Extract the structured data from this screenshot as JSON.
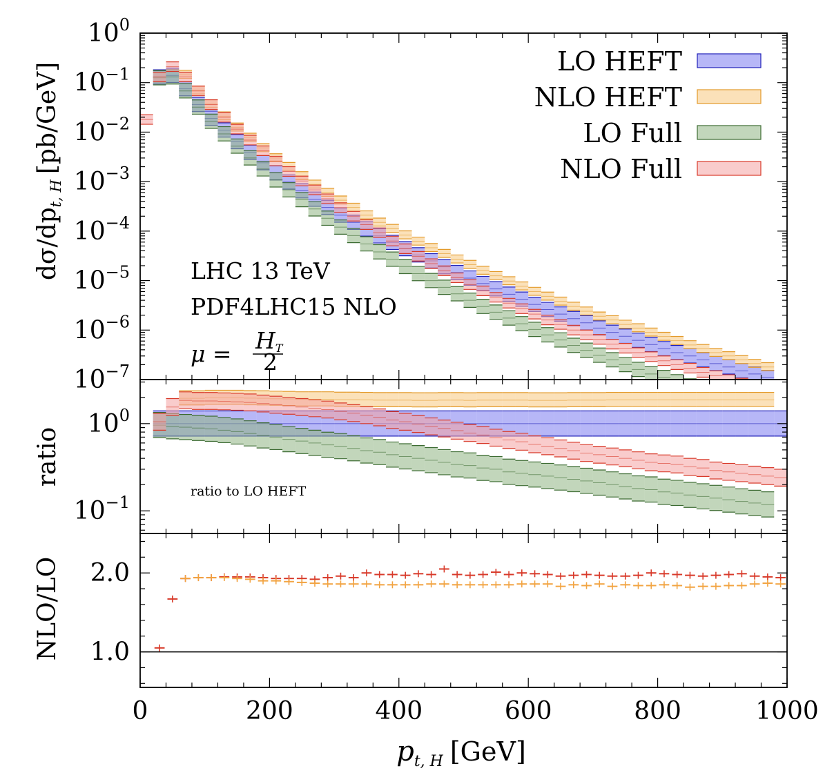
{
  "chart_data": {
    "type": "band",
    "x_ticks": [
      0,
      200,
      400,
      600,
      800,
      1000
    ],
    "xlim": [
      0,
      1000
    ],
    "xlabel_main": "p",
    "xlabel_sub": "t, H",
    "xlabel_unit": "[GeV]",
    "bins": [
      20,
      40,
      60,
      80,
      100,
      120,
      140,
      160,
      180,
      200,
      220,
      240,
      260,
      280,
      300,
      320,
      340,
      360,
      380,
      400,
      420,
      440,
      460,
      480,
      500,
      520,
      540,
      560,
      580,
      600,
      620,
      640,
      660,
      680,
      700,
      720,
      740,
      760,
      780,
      800,
      820,
      840,
      860,
      880,
      900,
      920,
      940,
      960,
      980,
      1000
    ],
    "panels": [
      {
        "id": "main",
        "ylabel_main": "dσ/dp",
        "ylabel_sub": "t, H",
        "ylabel_unit": "[pb/GeV]",
        "yscale": "log",
        "ylim": [
          1e-07,
          1
        ],
        "y_tick_labels": [
          {
            "base": "10",
            "exp": "0",
            "value": 1
          },
          {
            "base": "10",
            "exp": "−1",
            "value": 0.1
          },
          {
            "base": "10",
            "exp": "−2",
            "value": 0.01
          },
          {
            "base": "10",
            "exp": "−3",
            "value": 0.001
          },
          {
            "base": "10",
            "exp": "−4",
            "value": 0.0001
          },
          {
            "base": "10",
            "exp": "−5",
            "value": 1e-05
          },
          {
            "base": "10",
            "exp": "−6",
            "value": 1e-06
          },
          {
            "base": "10",
            "exp": "−7",
            "value": 1e-07
          }
        ],
        "series": [
          {
            "name": "LO HEFT",
            "color": "#7b7bf0",
            "edge": "#1f1fb8",
            "x_start": 20,
            "center": [
              0.13,
              0.14,
              0.075,
              0.036,
              0.019,
              0.011,
              0.0064,
              0.0039,
              0.0024,
              0.0015,
              0.00098,
              0.00065,
              0.00044,
              0.0003,
              0.00021,
              0.00015,
              0.00011,
              8e-05,
              5.9e-05,
              4.4e-05,
              3.3e-05,
              2.5e-05,
              1.9e-05,
              1.45e-05,
              1.12e-05,
              8.7e-06,
              6.8e-06,
              5.3e-06,
              4.2e-06,
              3.3e-06,
              2.6e-06,
              2.1e-06,
              1.7e-06,
              1.4e-06,
              1.1e-06,
              9e-07,
              7.5e-07,
              6.2e-07,
              5.1e-07,
              4.2e-07,
              3.5e-07,
              3e-07,
              2.5e-07,
              2.1e-07,
              1.8e-07,
              1.5e-07,
              1.3e-07,
              1.1e-07
            ],
            "rel_up": 1.4,
            "rel_down": 0.72
          },
          {
            "name": "NLO HEFT",
            "color": "#f7c97f",
            "edge": "#e39a2a",
            "x_start": 60,
            "center": [
              0.145,
              0.07,
              0.037,
              0.021,
              0.0125,
              0.0078,
              0.0048,
              0.003,
              0.002,
              0.0013,
              0.00088,
              0.0006,
              0.00042,
              0.0003,
              0.00021,
              0.00015,
              0.000112,
              8.3e-05,
              6.2e-05,
              4.6e-05,
              3.5e-05,
              2.7e-05,
              2.1e-05,
              1.6e-05,
              1.25e-05,
              9.8e-06,
              7.7e-06,
              6e-06,
              4.8e-06,
              3.8e-06,
              3e-06,
              2.4e-06,
              1.9e-06,
              1.6e-06,
              1.3e-06,
              1.1e-06,
              9e-07,
              7.4e-07,
              6.1e-07,
              5e-07,
              4.2e-07,
              3.5e-07,
              3e-07,
              2.5e-07,
              2.1e-07,
              1.8e-07
            ],
            "rel_up": 1.22,
            "rel_down": 0.84
          },
          {
            "name": "LO Full",
            "color": "#8fb583",
            "edge": "#3c6b32",
            "x_start": 20,
            "center": [
              0.125,
              0.13,
              0.068,
              0.032,
              0.0165,
              0.0092,
              0.0052,
              0.003,
              0.0018,
              0.00108,
              0.00068,
              0.00043,
              0.00028,
              0.000182,
              0.00012,
              8.1e-05,
              5.5e-05,
              3.8e-05,
              2.7e-05,
              1.92e-05,
              1.38e-05,
              1e-05,
              7.3e-06,
              5.4e-06,
              4e-06,
              3e-06,
              2.3e-06,
              1.75e-06,
              1.34e-06,
              1.03e-06,
              8e-07,
              6.3e-07,
              4.9e-07,
              3.9e-07,
              3.1e-07,
              2.5e-07,
              2e-07,
              1.6e-07,
              1.3e-07,
              1.1e-07,
              9e-08,
              7.4e-08,
              6.2e-08,
              5.2e-08,
              4.3e-08,
              3.6e-08,
              3e-08,
              2.5e-08
            ],
            "rel_up": 1.4,
            "rel_down": 0.72
          },
          {
            "name": "NLO Full",
            "color": "#f4a2a2",
            "edge": "#d83a2a",
            "x_start": 0,
            "center": [
              0.018,
              0.13,
              0.21,
              0.13,
              0.068,
              0.036,
              0.02,
              0.0115,
              0.0069,
              0.0042,
              0.0026,
              0.0016,
              0.00103,
              0.00068,
              0.00045,
              0.000298,
              0.0002,
              0.000135,
              9.3e-05,
              6.3e-05,
              4.4e-05,
              3.1e-05,
              2.2e-05,
              1.58e-05,
              1.14e-05,
              8.3e-06,
              6.2e-06,
              4.6e-06,
              3.5e-06,
              2.7e-06,
              2.1e-06,
              1.6e-06,
              1.3e-06,
              1e-06,
              8e-07,
              6.5e-07,
              5.2e-07,
              4.3e-07,
              3.5e-07,
              2.9e-07,
              2.4e-07,
              2e-07,
              1.7e-07,
              1.4e-07,
              1.2e-07,
              1e-07,
              8.5e-08,
              7.2e-08,
              6.1e-08,
              5.2e-08
            ],
            "rel_up": 1.25,
            "rel_down": 0.8
          }
        ],
        "annotations": [
          "LHC 13 TeV",
          "PDF4LHC15 NLO"
        ],
        "mu_label": {
          "lhs": "μ = ",
          "num": "H",
          "num_sub": "T",
          "den": "2"
        }
      },
      {
        "id": "ratio",
        "ylabel": "ratio",
        "yscale": "log",
        "ylim": [
          0.055,
          3.2
        ],
        "y_tick_labels": [
          {
            "base": "10",
            "exp": "0",
            "value": 1
          },
          {
            "base": "10",
            "exp": "−1",
            "value": 0.1
          }
        ],
        "annotation": "ratio to LO HEFT",
        "series": [
          {
            "name": "LO HEFT",
            "center_const": 1.0,
            "rel_up": 1.4,
            "rel_down": 0.72,
            "x_start": 20
          },
          {
            "name": "NLO HEFT",
            "x_start": 60,
            "center": [
              1.95,
              1.95,
              1.98,
              1.98,
              1.98,
              1.96,
              1.95,
              1.93,
              1.92,
              1.9,
              1.9,
              1.9,
              1.88,
              1.88,
              1.87,
              1.86,
              1.86,
              1.86,
              1.85,
              1.85,
              1.86,
              1.86,
              1.85,
              1.86,
              1.86,
              1.86,
              1.86,
              1.85,
              1.85,
              1.85,
              1.86,
              1.86,
              1.86,
              1.87,
              1.87,
              1.87,
              1.87,
              1.87,
              1.87,
              1.87,
              1.87,
              1.87,
              1.87,
              1.87,
              1.87,
              1.87
            ],
            "rel_up": 1.22,
            "rel_down": 0.84
          },
          {
            "name": "LO Full",
            "x_start": 20,
            "center": [
              0.96,
              0.93,
              0.91,
              0.89,
              0.87,
              0.84,
              0.81,
              0.77,
              0.73,
              0.7,
              0.66,
              0.63,
              0.6,
              0.57,
              0.55,
              0.52,
              0.49,
              0.47,
              0.44,
              0.42,
              0.4,
              0.38,
              0.36,
              0.34,
              0.33,
              0.31,
              0.3,
              0.28,
              0.27,
              0.26,
              0.25,
              0.24,
              0.23,
              0.22,
              0.21,
              0.2,
              0.19,
              0.18,
              0.175,
              0.165,
              0.16,
              0.152,
              0.146,
              0.14,
              0.134,
              0.128,
              0.123,
              0.118
            ],
            "rel_up": 1.4,
            "rel_down": 0.72
          },
          {
            "name": "NLO Full",
            "x_start": 20,
            "center": [
              1.05,
              1.55,
              1.85,
              1.82,
              1.82,
              1.8,
              1.78,
              1.75,
              1.7,
              1.65,
              1.6,
              1.55,
              1.5,
              1.45,
              1.38,
              1.32,
              1.25,
              1.18,
              1.1,
              1.05,
              0.99,
              0.93,
              0.88,
              0.83,
              0.78,
              0.74,
              0.69,
              0.65,
              0.62,
              0.58,
              0.55,
              0.52,
              0.49,
              0.46,
              0.44,
              0.42,
              0.4,
              0.38,
              0.36,
              0.35,
              0.34,
              0.32,
              0.31,
              0.29,
              0.28,
              0.27,
              0.26,
              0.25,
              0.24
            ],
            "rel_up": 1.25,
            "rel_down": 0.8
          }
        ]
      },
      {
        "id": "kfactor",
        "ylabel": "NLO/LO",
        "yscale": "linear",
        "ylim": [
          0.55,
          2.5
        ],
        "y_ticks": [
          1.0,
          2.0
        ],
        "y_tick_labels": [
          "1.0",
          "2.0"
        ],
        "reference_line": 1.0,
        "series": [
          {
            "name": "NLO Full / LO Full",
            "color": "#d83a2a",
            "x_start": 20,
            "values": [
              1.05,
              1.67,
              1.93,
              1.94,
              1.94,
              1.95,
              1.95,
              1.95,
              1.94,
              1.93,
              1.93,
              1.93,
              1.92,
              1.94,
              1.96,
              1.94,
              2.0,
              1.98,
              1.98,
              1.97,
              1.99,
              1.98,
              2.05,
              1.98,
              1.97,
              1.98,
              2.01,
              1.98,
              2.0,
              1.99,
              1.98,
              1.96,
              1.97,
              1.98,
              1.97,
              1.96,
              1.96,
              1.97,
              2.0,
              1.99,
              1.98,
              1.97,
              1.96,
              1.97,
              1.98,
              1.99,
              1.96,
              1.95,
              1.94,
              1.88
            ]
          },
          {
            "name": "NLO HEFT / LO HEFT",
            "color": "#f2a442",
            "x_start": 60,
            "values": [
              1.93,
              1.94,
              1.94,
              1.94,
              1.93,
              1.92,
              1.9,
              1.9,
              1.89,
              1.88,
              1.87,
              1.86,
              1.86,
              1.86,
              1.86,
              1.85,
              1.85,
              1.85,
              1.85,
              1.86,
              1.86,
              1.85,
              1.85,
              1.85,
              1.85,
              1.85,
              1.86,
              1.86,
              1.86,
              1.83,
              1.85,
              1.84,
              1.86,
              1.83,
              1.85,
              1.84,
              1.84,
              1.85,
              1.84,
              1.82,
              1.83,
              1.83,
              1.84,
              1.84,
              1.86,
              1.87,
              1.86,
              1.87
            ]
          }
        ]
      }
    ],
    "legend": {
      "placement": "top-right",
      "entries": [
        "LO HEFT",
        "NLO HEFT",
        "LO Full",
        "NLO Full"
      ]
    }
  }
}
